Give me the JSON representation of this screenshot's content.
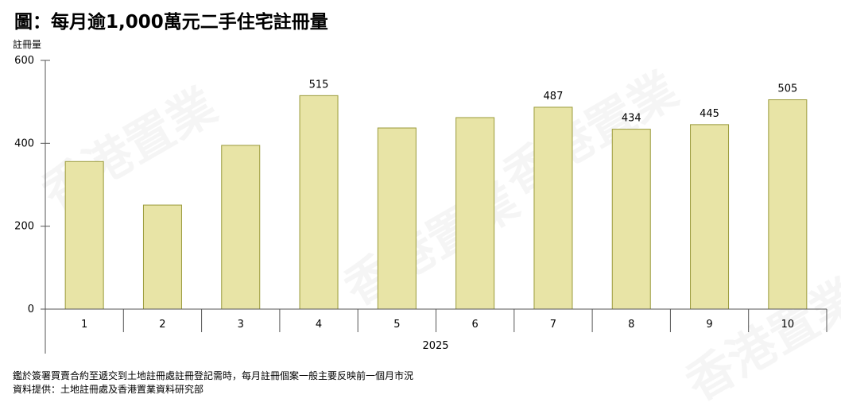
{
  "title": "圖：每月逾1,000萬元二手住宅註冊量",
  "notes": [
    "鑑於簽署買賣合約至遞交到土地註冊處註冊登記需時，每月註冊個案一般主要反映前一個月市況",
    "資料提供：土地註冊處及香港置業資料研究部"
  ],
  "watermark": "香港置業",
  "chart_data": {
    "type": "bar",
    "title": "圖：每月逾1,000萬元二手住宅註冊量",
    "ylabel": "註冊量",
    "xlabel": "2025",
    "categories": [
      "1",
      "2",
      "3",
      "4",
      "5",
      "6",
      "7",
      "8",
      "9",
      "10"
    ],
    "values": [
      356,
      251,
      395,
      515,
      437,
      462,
      487,
      434,
      445,
      505
    ],
    "data_labels": [
      "",
      "",
      "",
      "515",
      "",
      "",
      "487",
      "434",
      "445",
      "505"
    ],
    "ylim": [
      0,
      600
    ],
    "yticks": [
      0,
      200,
      400,
      600
    ],
    "grid": false,
    "bar_color": "#e8e4a6",
    "bar_edge_color": "#9a9a3a"
  }
}
